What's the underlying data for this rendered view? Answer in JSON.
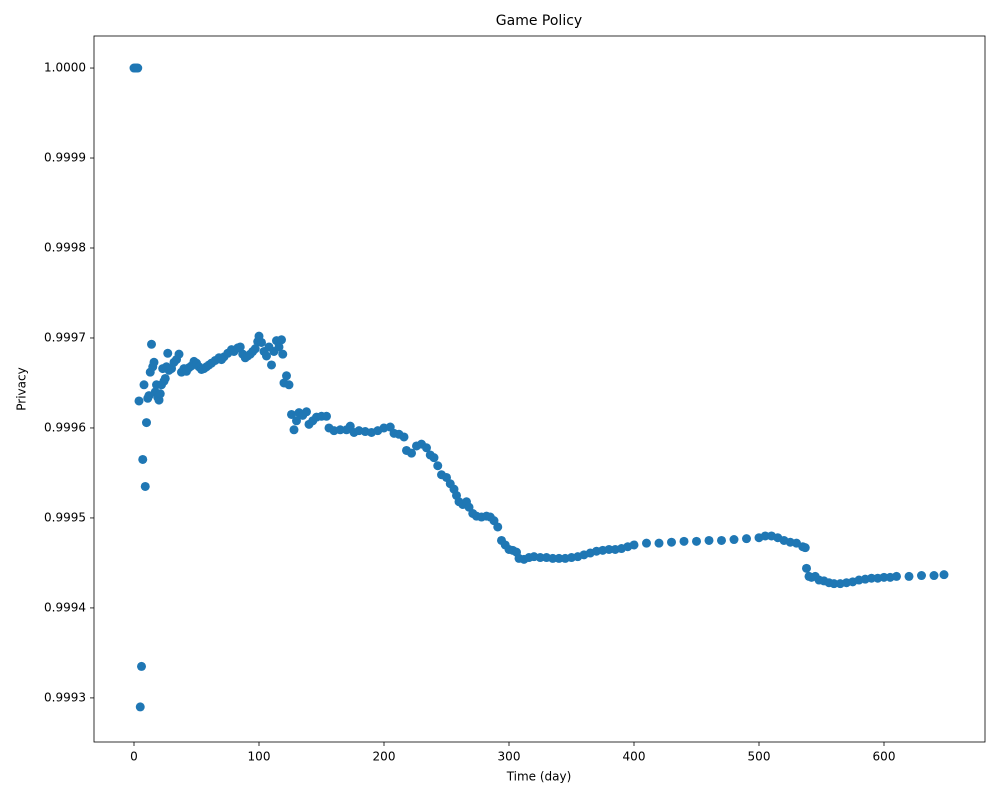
{
  "chart_data": {
    "type": "scatter",
    "title": "Game Policy",
    "x_label": "Time (day)",
    "y_label": "Privacy",
    "color": "#1f77b4",
    "xlim": [
      -32,
      680.8
    ],
    "ylim": [
      0.999251,
      1.0000356
    ],
    "xticks": [
      0,
      100,
      200,
      300,
      400,
      500,
      600
    ],
    "yticks": [
      0.9993,
      0.9994,
      0.9995,
      0.9996,
      0.9997,
      0.9998,
      0.9999,
      {
        "value": 1,
        "label": "1.0000"
      }
    ],
    "x": [
      0,
      1,
      2,
      3,
      4,
      5,
      6,
      7,
      8,
      9,
      10,
      11,
      12,
      13,
      14,
      15,
      16,
      17,
      18,
      19,
      20,
      21,
      22,
      23,
      24,
      25,
      26,
      27,
      28,
      30,
      32,
      34,
      36,
      38,
      40,
      42,
      44,
      46,
      48,
      50,
      52,
      54,
      56,
      58,
      60,
      62,
      65,
      68,
      70,
      72,
      75,
      78,
      80,
      83,
      85,
      87,
      89,
      91,
      93,
      95,
      97,
      99,
      100,
      102,
      104,
      106,
      108,
      110,
      112,
      114,
      116,
      118,
      119,
      120,
      122,
      124,
      126,
      128,
      130,
      132,
      135,
      138,
      140,
      143,
      146,
      150,
      154,
      156,
      160,
      165,
      170,
      173,
      176,
      180,
      185,
      190,
      195,
      200,
      205,
      208,
      212,
      216,
      218,
      222,
      226,
      230,
      234,
      237,
      240,
      243,
      246,
      250,
      253,
      256,
      258,
      260,
      263,
      266,
      268,
      271,
      274,
      278,
      282,
      285,
      288,
      291,
      294,
      297,
      300,
      303,
      306,
      308,
      312,
      316,
      320,
      325,
      330,
      335,
      340,
      345,
      350,
      355,
      360,
      365,
      370,
      375,
      380,
      385,
      390,
      395,
      400,
      410,
      420,
      430,
      440,
      450,
      460,
      470,
      480,
      490,
      500,
      505,
      510,
      515,
      520,
      525,
      530,
      535,
      537,
      538,
      540,
      542,
      545,
      548,
      552,
      556,
      560,
      565,
      570,
      575,
      580,
      585,
      590,
      595,
      600,
      605,
      610,
      620,
      630,
      640,
      648
    ],
    "values": [
      1.0,
      1.0,
      1.0,
      1.0,
      0.99963,
      0.99929,
      0.999335,
      0.999565,
      0.999648,
      0.999535,
      0.999606,
      0.999633,
      0.999636,
      0.999662,
      0.999693,
      0.999668,
      0.999673,
      0.99964,
      0.999648,
      0.999634,
      0.999631,
      0.999638,
      0.999648,
      0.999666,
      0.999652,
      0.999655,
      0.999668,
      0.999683,
      0.999664,
      0.999666,
      0.999673,
      0.999676,
      0.999682,
      0.999662,
      0.999666,
      0.999663,
      0.999667,
      0.999669,
      0.999674,
      0.999672,
      0.999668,
      0.999665,
      0.999666,
      0.999668,
      0.99967,
      0.999672,
      0.999675,
      0.999678,
      0.999676,
      0.999679,
      0.999683,
      0.999687,
      0.999685,
      0.999689,
      0.99969,
      0.999682,
      0.999678,
      0.99968,
      0.999682,
      0.999685,
      0.999688,
      0.999696,
      0.999702,
      0.999695,
      0.999685,
      0.99968,
      0.99969,
      0.99967,
      0.999685,
      0.999697,
      0.99969,
      0.999698,
      0.999682,
      0.99965,
      0.999658,
      0.999648,
      0.999615,
      0.999598,
      0.999608,
      0.999617,
      0.999614,
      0.999618,
      0.999604,
      0.999608,
      0.999612,
      0.999613,
      0.999613,
      0.9996,
      0.999597,
      0.999598,
      0.999598,
      0.999602,
      0.999595,
      0.999597,
      0.999596,
      0.999595,
      0.999597,
      0.9996,
      0.999601,
      0.999594,
      0.999593,
      0.99959,
      0.999575,
      0.999572,
      0.99958,
      0.999582,
      0.999578,
      0.99957,
      0.999567,
      0.999558,
      0.999548,
      0.999545,
      0.999538,
      0.999532,
      0.999525,
      0.999518,
      0.999515,
      0.999518,
      0.999512,
      0.999505,
      0.999502,
      0.999501,
      0.999502,
      0.999501,
      0.999497,
      0.99949,
      0.999475,
      0.99947,
      0.999465,
      0.999464,
      0.999462,
      0.999455,
      0.999454,
      0.999456,
      0.999457,
      0.999456,
      0.999456,
      0.999455,
      0.999455,
      0.999455,
      0.999456,
      0.999457,
      0.999459,
      0.999461,
      0.999463,
      0.999464,
      0.999465,
      0.999465,
      0.999466,
      0.999468,
      0.99947,
      0.999472,
      0.999472,
      0.999473,
      0.999474,
      0.999474,
      0.999475,
      0.999475,
      0.999476,
      0.999477,
      0.999478,
      0.99948,
      0.99948,
      0.999478,
      0.999475,
      0.999473,
      0.999472,
      0.999468,
      0.999467,
      0.999444,
      0.999435,
      0.999434,
      0.999435,
      0.999431,
      0.99943,
      0.999428,
      0.999427,
      0.999427,
      0.999428,
      0.999429,
      0.999431,
      0.999432,
      0.999433,
      0.999433,
      0.999434,
      0.999434,
      0.999435,
      0.999435,
      0.999436,
      0.999436,
      0.999437
    ]
  }
}
